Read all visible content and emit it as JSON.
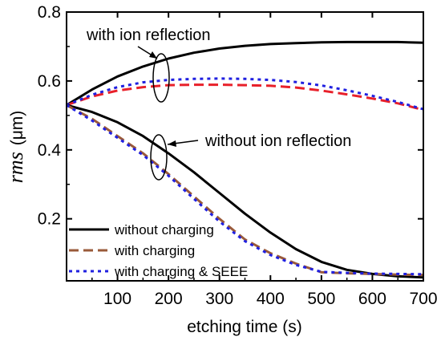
{
  "chart_data": {
    "type": "line",
    "xlabel": "etching time (s)",
    "ylabel_italic": "rms",
    "ylabel_unit": "(μm)",
    "xlim": [
      0,
      700
    ],
    "ylim": [
      0.02,
      0.8
    ],
    "xticks": [
      100,
      200,
      300,
      400,
      500,
      600,
      700
    ],
    "yticks": [
      0.2,
      0.4,
      0.6,
      0.8
    ],
    "grid": false,
    "legend_position": "bottom-left",
    "annotations": {
      "with_ion_reflection": "with ion reflection",
      "without_ion_reflection": "without ion reflection"
    },
    "series": [
      {
        "name": "without charging",
        "group": "with ion reflection",
        "style": "solid",
        "color": "#000000",
        "x": [
          0,
          50,
          100,
          150,
          200,
          250,
          300,
          350,
          400,
          450,
          500,
          550,
          600,
          650,
          700
        ],
        "y": [
          0.53,
          0.575,
          0.613,
          0.642,
          0.665,
          0.682,
          0.694,
          0.702,
          0.707,
          0.71,
          0.712,
          0.713,
          0.713,
          0.713,
          0.711
        ]
      },
      {
        "name": "with charging",
        "group": "with ion reflection",
        "style": "dash",
        "color": "#e8202a",
        "x": [
          0,
          50,
          100,
          150,
          200,
          250,
          300,
          350,
          400,
          450,
          500,
          550,
          600,
          650,
          700
        ],
        "y": [
          0.53,
          0.555,
          0.572,
          0.582,
          0.588,
          0.589,
          0.589,
          0.588,
          0.586,
          0.581,
          0.572,
          0.561,
          0.549,
          0.535,
          0.516
        ]
      },
      {
        "name": "with charging & SEEE",
        "group": "with ion reflection",
        "style": "dot",
        "color": "#2020e0",
        "x": [
          0,
          50,
          100,
          150,
          200,
          250,
          300,
          350,
          400,
          450,
          500,
          550,
          600,
          650,
          700
        ],
        "y": [
          0.53,
          0.56,
          0.582,
          0.596,
          0.603,
          0.606,
          0.607,
          0.606,
          0.603,
          0.597,
          0.587,
          0.573,
          0.557,
          0.539,
          0.518
        ]
      },
      {
        "name": "without charging",
        "group": "without ion reflection",
        "style": "solid",
        "color": "#000000",
        "x": [
          0,
          50,
          100,
          150,
          200,
          250,
          300,
          350,
          400,
          450,
          500,
          550,
          600,
          650,
          700
        ],
        "y": [
          0.53,
          0.51,
          0.48,
          0.44,
          0.39,
          0.335,
          0.275,
          0.215,
          0.16,
          0.112,
          0.075,
          0.052,
          0.04,
          0.033,
          0.03
        ]
      },
      {
        "name": "with charging",
        "group": "without ion reflection",
        "style": "dash",
        "color": "#9a5a3a",
        "x": [
          0,
          50,
          100,
          150,
          200,
          250,
          300,
          350,
          400,
          450,
          500,
          550,
          600,
          650,
          700
        ],
        "y": [
          0.53,
          0.49,
          0.44,
          0.39,
          0.33,
          0.265,
          0.2,
          0.14,
          0.1,
          0.07,
          0.045,
          0.042,
          0.04,
          0.038,
          0.037
        ]
      },
      {
        "name": "with charging & SEEE",
        "group": "without ion reflection",
        "style": "dot",
        "color": "#2020e0",
        "x": [
          0,
          50,
          100,
          150,
          200,
          250,
          300,
          350,
          400,
          450,
          500,
          550,
          600,
          650,
          700
        ],
        "y": [
          0.53,
          0.485,
          0.435,
          0.385,
          0.325,
          0.258,
          0.192,
          0.135,
          0.095,
          0.066,
          0.046,
          0.043,
          0.041,
          0.04,
          0.039
        ]
      }
    ],
    "legend": [
      {
        "label": "without charging",
        "style": "solid",
        "color": "#000000"
      },
      {
        "label": "with charging",
        "style": "dash",
        "color": "#9a5a3a"
      },
      {
        "label": "with charging & SEEE",
        "style": "dot",
        "color": "#2020e0"
      }
    ]
  }
}
